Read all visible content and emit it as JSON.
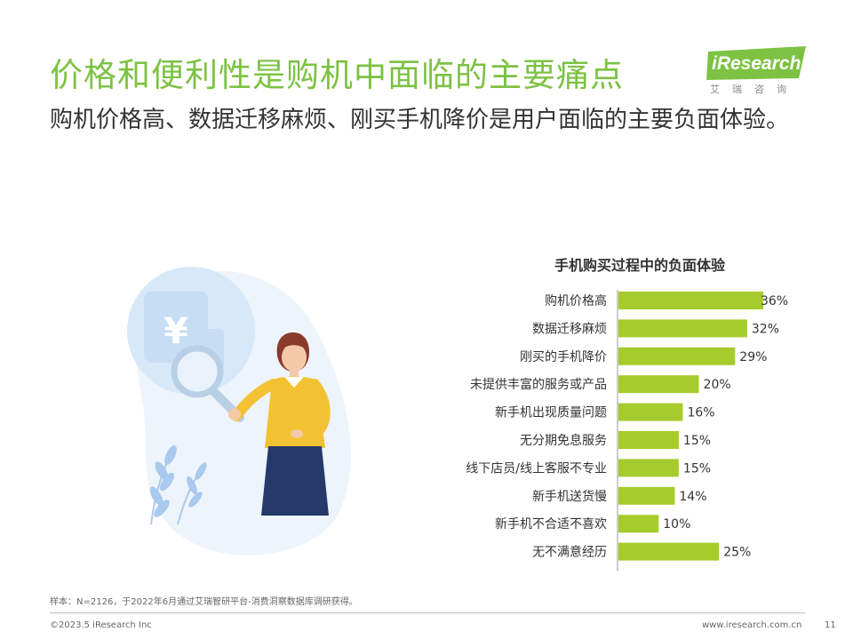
{
  "header": {
    "title": "价格和便利性是购机中面临的主要痛点",
    "subtitle": "购机价格高、数据迁移麻烦、刚买手机降价是用户面临的主要负面体验。"
  },
  "logo": {
    "text": "iResearch",
    "subtext": "艾瑞咨询",
    "color": "#7dc243"
  },
  "illustration": {
    "currency_symbol": "¥"
  },
  "chart_data": {
    "type": "bar",
    "orientation": "horizontal",
    "title": "手机购买过程中的负面体验",
    "categories": [
      "购机价格高",
      "数据迁移麻烦",
      "刚买的手机降价",
      "未提供丰富的服务或产品",
      "新手机出现质量问题",
      "无分期免息服务",
      "线下店员/线上客服不专业",
      "新手机送货慢",
      "新手机不合适不喜欢",
      "无不满意经历"
    ],
    "values": [
      36,
      32,
      29,
      20,
      16,
      15,
      15,
      14,
      10,
      25
    ],
    "value_labels": [
      "36%",
      "32%",
      "29%",
      "20%",
      "16%",
      "15%",
      "15%",
      "14%",
      "10%",
      "25%"
    ],
    "unit": "%",
    "xlim": [
      0,
      36
    ],
    "bar_color": "#a6cb2c",
    "grid": false
  },
  "footer": {
    "note": "样本：N=2126，于2022年6月通过艾瑞智研平台-消费洞察数据库调研获得。",
    "copyright": "©2023.5 iResearch Inc",
    "website": "www.iresearch.com.cn",
    "page": "11"
  }
}
